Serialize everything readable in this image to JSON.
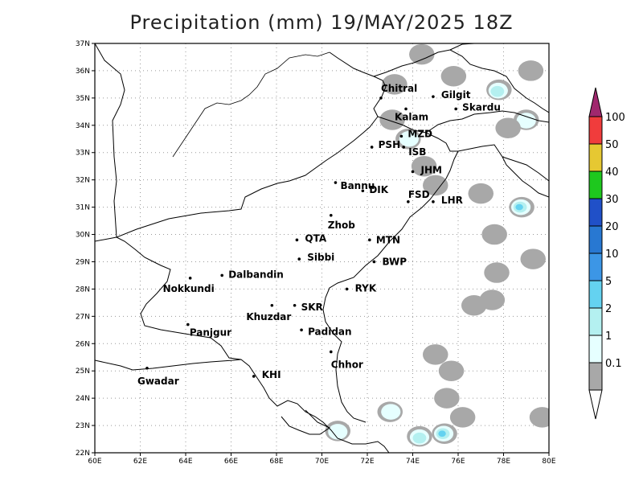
{
  "title": "Precipitation (mm) 19/MAY/2025 18Z",
  "map": {
    "lon_ticks": [
      "60E",
      "62E",
      "64E",
      "66E",
      "68E",
      "70E",
      "72E",
      "74E",
      "76E",
      "78E",
      "80E"
    ],
    "lat_ticks": [
      "22N",
      "23N",
      "24N",
      "25N",
      "26N",
      "27N",
      "28N",
      "29N",
      "30N",
      "31N",
      "32N",
      "33N",
      "34N",
      "35N",
      "36N",
      "37N"
    ],
    "extent": {
      "lon": [
        60,
        80
      ],
      "lat": [
        22,
        37
      ]
    },
    "grid": true,
    "cities": [
      {
        "name": "Chitral",
        "lon": 72.6,
        "lat": 35.0,
        "dx": 0,
        "dy": -8
      },
      {
        "name": "Gilgit",
        "lon": 74.9,
        "lat": 35.05,
        "dx": 10,
        "dy": 2
      },
      {
        "name": "Kalam",
        "lon": 73.7,
        "lat": 34.6,
        "dx": -14,
        "dy": 14
      },
      {
        "name": "Skardu",
        "lon": 75.9,
        "lat": 34.6,
        "dx": 8,
        "dy": 2
      },
      {
        "name": "MZD",
        "lon": 73.5,
        "lat": 33.6,
        "dx": 8,
        "dy": 1
      },
      {
        "name": "PSH",
        "lon": 72.2,
        "lat": 33.2,
        "dx": 8,
        "dy": 1
      },
      {
        "name": "ISB",
        "lon": 73.6,
        "lat": 33.2,
        "dx": 6,
        "dy": 10
      },
      {
        "name": "JHM",
        "lon": 74.0,
        "lat": 32.3,
        "dx": 10,
        "dy": 2
      },
      {
        "name": "Bannu",
        "lon": 70.6,
        "lat": 31.9,
        "dx": 6,
        "dy": 8
      },
      {
        "name": "DIK",
        "lon": 71.8,
        "lat": 31.6,
        "dx": 8,
        "dy": 3
      },
      {
        "name": "FSD",
        "lon": 73.8,
        "lat": 31.2,
        "dx": 0,
        "dy": -5
      },
      {
        "name": "LHR",
        "lon": 74.9,
        "lat": 31.2,
        "dx": 10,
        "dy": 2
      },
      {
        "name": "Zhob",
        "lon": 70.4,
        "lat": 30.7,
        "dx": -4,
        "dy": 16
      },
      {
        "name": "QTA",
        "lon": 68.9,
        "lat": 29.8,
        "dx": 10,
        "dy": 2
      },
      {
        "name": "MTN",
        "lon": 72.1,
        "lat": 29.8,
        "dx": 8,
        "dy": 4
      },
      {
        "name": "Sibbi",
        "lon": 69.0,
        "lat": 29.1,
        "dx": 10,
        "dy": 2
      },
      {
        "name": "BWP",
        "lon": 72.3,
        "lat": 29.0,
        "dx": 10,
        "dy": 4
      },
      {
        "name": "Nokkundi",
        "lon": 64.2,
        "lat": 28.4,
        "dx": -34,
        "dy": 17
      },
      {
        "name": "Dalbandin",
        "lon": 65.6,
        "lat": 28.5,
        "dx": 8,
        "dy": 3
      },
      {
        "name": "RYK",
        "lon": 71.1,
        "lat": 28.0,
        "dx": 10,
        "dy": 3
      },
      {
        "name": "Khuzdar",
        "lon": 67.8,
        "lat": 27.4,
        "dx": -32,
        "dy": 18
      },
      {
        "name": "SKR",
        "lon": 68.8,
        "lat": 27.4,
        "dx": 8,
        "dy": 6
      },
      {
        "name": "Panjgur",
        "lon": 64.1,
        "lat": 26.7,
        "dx": 2,
        "dy": 14
      },
      {
        "name": "Padidan",
        "lon": 69.1,
        "lat": 26.5,
        "dx": 8,
        "dy": 6
      },
      {
        "name": "Chhor",
        "lon": 70.4,
        "lat": 25.7,
        "dx": 0,
        "dy": 20
      },
      {
        "name": "Gwadar",
        "lon": 62.3,
        "lat": 25.1,
        "dx": -12,
        "dy": 20
      },
      {
        "name": "KHI",
        "lon": 67.0,
        "lat": 24.8,
        "dx": 10,
        "dy": 2
      }
    ],
    "precip_patches": [
      {
        "lon": 73.2,
        "lat": 35.5,
        "level": "0.1"
      },
      {
        "lon": 73.1,
        "lat": 34.2,
        "level": "0.1"
      },
      {
        "lon": 73.8,
        "lat": 33.5,
        "level": "1"
      },
      {
        "lon": 74.5,
        "lat": 32.5,
        "level": "0.1"
      },
      {
        "lon": 75.0,
        "lat": 31.8,
        "level": "0.1"
      },
      {
        "lon": 77.0,
        "lat": 31.5,
        "level": "0.1"
      },
      {
        "lon": 78.8,
        "lat": 31.0,
        "level": "5"
      },
      {
        "lon": 79.0,
        "lat": 34.2,
        "level": "1"
      },
      {
        "lon": 78.2,
        "lat": 33.9,
        "level": "0.1"
      },
      {
        "lon": 77.8,
        "lat": 35.3,
        "level": "2"
      },
      {
        "lon": 79.2,
        "lat": 36.0,
        "level": "0.1"
      },
      {
        "lon": 75.8,
        "lat": 35.8,
        "level": "0.1"
      },
      {
        "lon": 74.4,
        "lat": 36.6,
        "level": "0.1"
      },
      {
        "lon": 77.7,
        "lat": 28.6,
        "level": "0.1"
      },
      {
        "lon": 77.5,
        "lat": 27.6,
        "level": "0.1"
      },
      {
        "lon": 76.7,
        "lat": 27.4,
        "level": "0.1"
      },
      {
        "lon": 77.6,
        "lat": 30.0,
        "level": "0.1"
      },
      {
        "lon": 79.3,
        "lat": 29.1,
        "level": "0.1"
      },
      {
        "lon": 75.4,
        "lat": 22.7,
        "level": "20"
      },
      {
        "lon": 74.3,
        "lat": 22.6,
        "level": "2"
      },
      {
        "lon": 73.0,
        "lat": 23.5,
        "level": "1"
      },
      {
        "lon": 76.2,
        "lat": 23.3,
        "level": "0.1"
      },
      {
        "lon": 75.0,
        "lat": 25.6,
        "level": "0.1"
      },
      {
        "lon": 75.7,
        "lat": 25.0,
        "level": "0.1"
      },
      {
        "lon": 75.5,
        "lat": 24.0,
        "level": "0.1"
      },
      {
        "lon": 70.7,
        "lat": 22.8,
        "level": "1"
      },
      {
        "lon": 79.7,
        "lat": 23.3,
        "level": "0.1"
      }
    ]
  },
  "colorbar": {
    "labels": [
      "100",
      "50",
      "40",
      "30",
      "20",
      "10",
      "5",
      "2",
      "1",
      "0.1"
    ],
    "colors": [
      "#f03c3c",
      "#e6c832",
      "#1ec81e",
      "#2050c8",
      "#2878d2",
      "#3c96e6",
      "#64d2f0",
      "#b4f0f0",
      "#e6ffff",
      "#a8a8a8"
    ],
    "top_color": "#a0286e",
    "bottom_color": "#ffffff"
  }
}
